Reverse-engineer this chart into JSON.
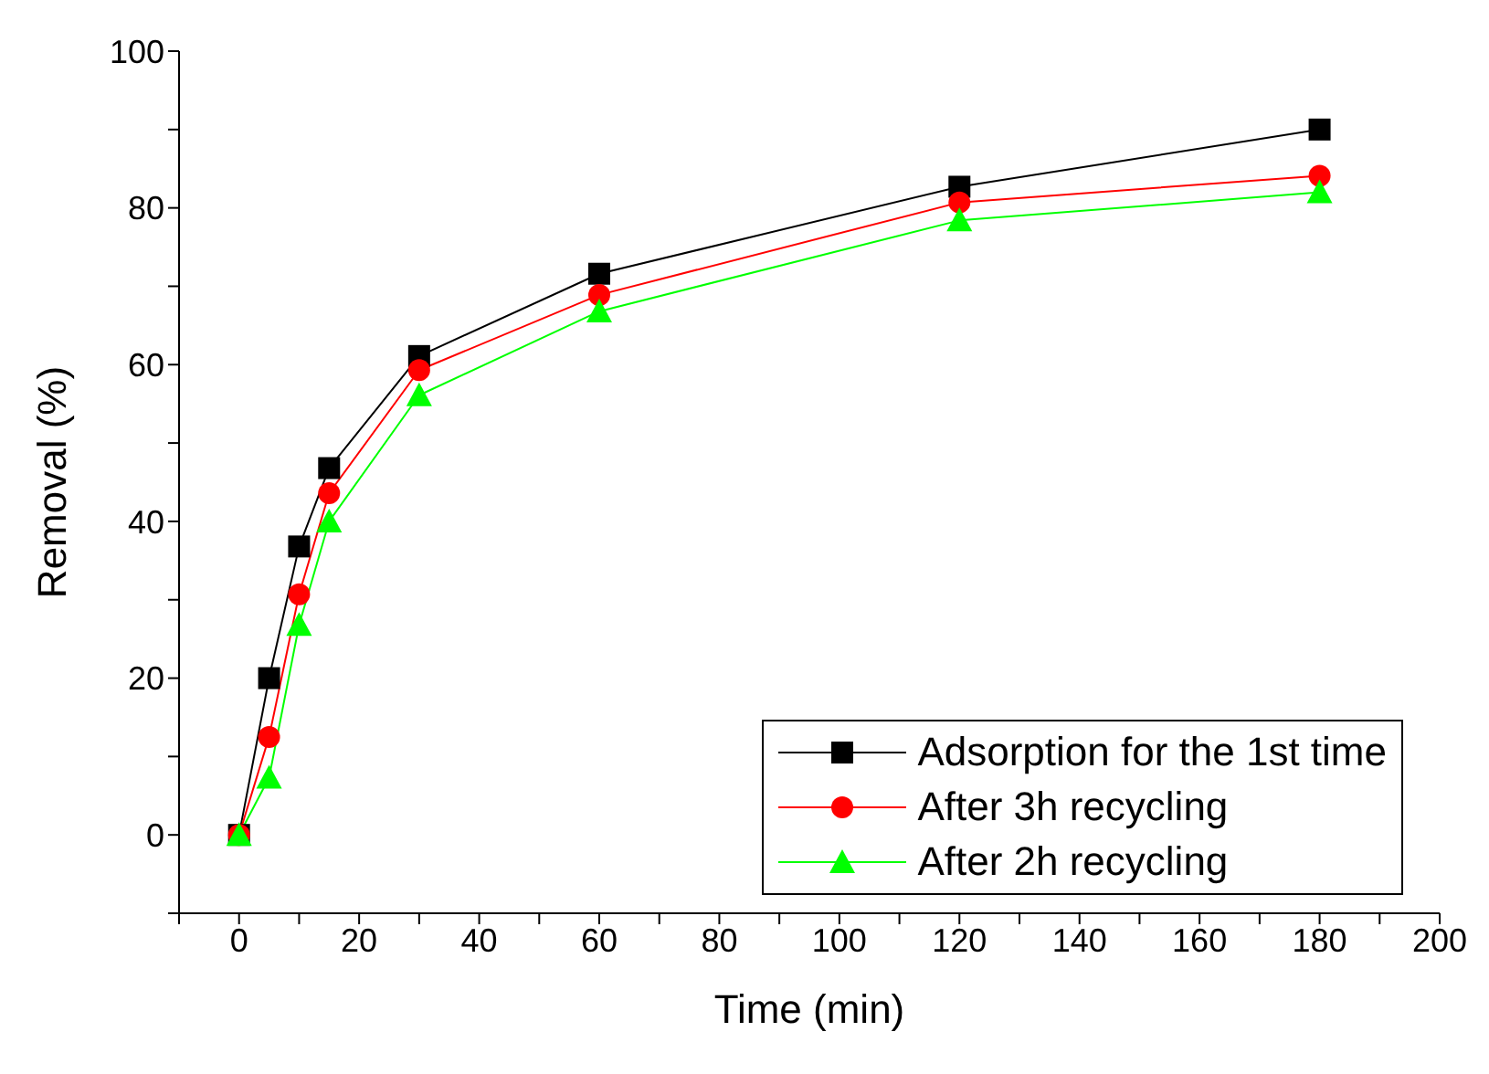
{
  "chart_data": {
    "type": "line",
    "xlabel": "Time (min)",
    "ylabel": "Removal (%)",
    "x": [
      0,
      5,
      10,
      15,
      30,
      60,
      120,
      180
    ],
    "series": [
      {
        "name": "Adsorption for the 1st time",
        "color": "#000000",
        "marker": "square",
        "values": [
          0,
          20,
          36.8,
          46.8,
          61.1,
          71.6,
          82.7,
          90
        ]
      },
      {
        "name": "After 3h recycling",
        "color": "#ff0000",
        "marker": "circle",
        "values": [
          0,
          12.5,
          30.7,
          43.6,
          59.3,
          68.9,
          80.7,
          84.1
        ]
      },
      {
        "name": "After 2h recycling",
        "color": "#00ff00",
        "marker": "triangle",
        "values": [
          0,
          7.3,
          26.8,
          40,
          56.1,
          66.8,
          78.4,
          82
        ]
      }
    ],
    "xlim": [
      -10,
      200
    ],
    "xticks": [
      {
        "value": -10,
        "label": null
      },
      0,
      {
        "value": 10,
        "label": null
      },
      20,
      {
        "value": 30,
        "label": null
      },
      40,
      {
        "value": 50,
        "label": null
      },
      60,
      {
        "value": 70,
        "label": null
      },
      80,
      {
        "value": 90,
        "label": null
      },
      100,
      {
        "value": 110,
        "label": null
      },
      120,
      {
        "value": 130,
        "label": null
      },
      140,
      {
        "value": 150,
        "label": null
      },
      160,
      {
        "value": 170,
        "label": null
      },
      180,
      {
        "value": 190,
        "label": null
      },
      200
    ],
    "ylim": [
      -10,
      100
    ],
    "yticks": [
      {
        "value": -10,
        "label": null
      },
      0,
      {
        "value": 10,
        "label": null
      },
      20,
      {
        "value": 30,
        "label": null
      },
      40,
      {
        "value": 50,
        "label": null
      },
      60,
      {
        "value": 70,
        "label": null
      },
      80,
      {
        "value": 90,
        "label": null
      },
      100
    ],
    "legend": "bottom right",
    "line_style": "solid"
  }
}
